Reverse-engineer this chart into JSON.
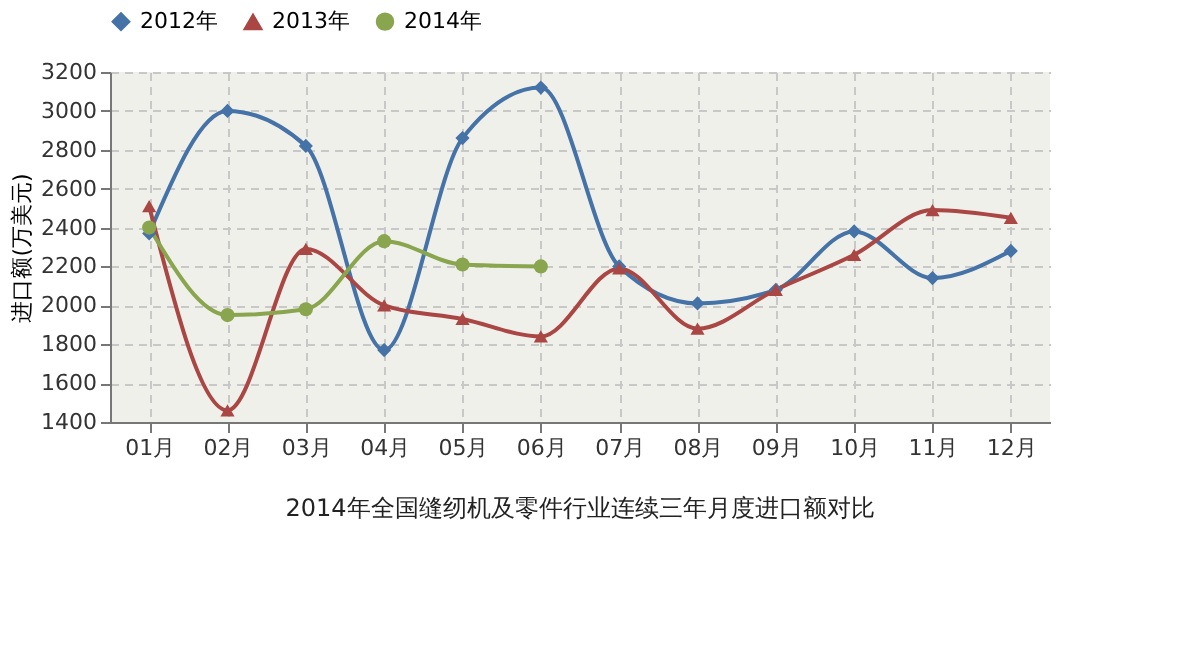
{
  "chart_data": {
    "type": "line",
    "title": "2014年全国缝纫机及零件行业连续三年月度进口额对比",
    "ylabel": "进口额(万美元)",
    "categories": [
      "01月",
      "02月",
      "03月",
      "04月",
      "05月",
      "06月",
      "07月",
      "08月",
      "09月",
      "10月",
      "11月",
      "12月"
    ],
    "series": [
      {
        "name": "2012年",
        "color": "#4572a7",
        "marker": "diamond",
        "values": [
          2370,
          3000,
          2820,
          1770,
          2860,
          3120,
          2200,
          2010,
          2080,
          2380,
          2140,
          2280
        ]
      },
      {
        "name": "2013年",
        "color": "#aa4643",
        "marker": "triangle",
        "values": [
          2510,
          1460,
          2290,
          2000,
          1930,
          1840,
          2190,
          1880,
          2080,
          2260,
          2490,
          2450
        ]
      },
      {
        "name": "2014年",
        "color": "#89a54e",
        "marker": "circle",
        "values": [
          2400,
          1950,
          1980,
          2330,
          2210,
          2200,
          null,
          null,
          null,
          null,
          null,
          null
        ]
      }
    ],
    "ylim": [
      1400,
      3200
    ],
    "yticks": [
      1400,
      1600,
      1800,
      2000,
      2200,
      2400,
      2600,
      2800,
      3000,
      3200
    ],
    "grid": true,
    "legend": "top",
    "line_style": "solid"
  }
}
